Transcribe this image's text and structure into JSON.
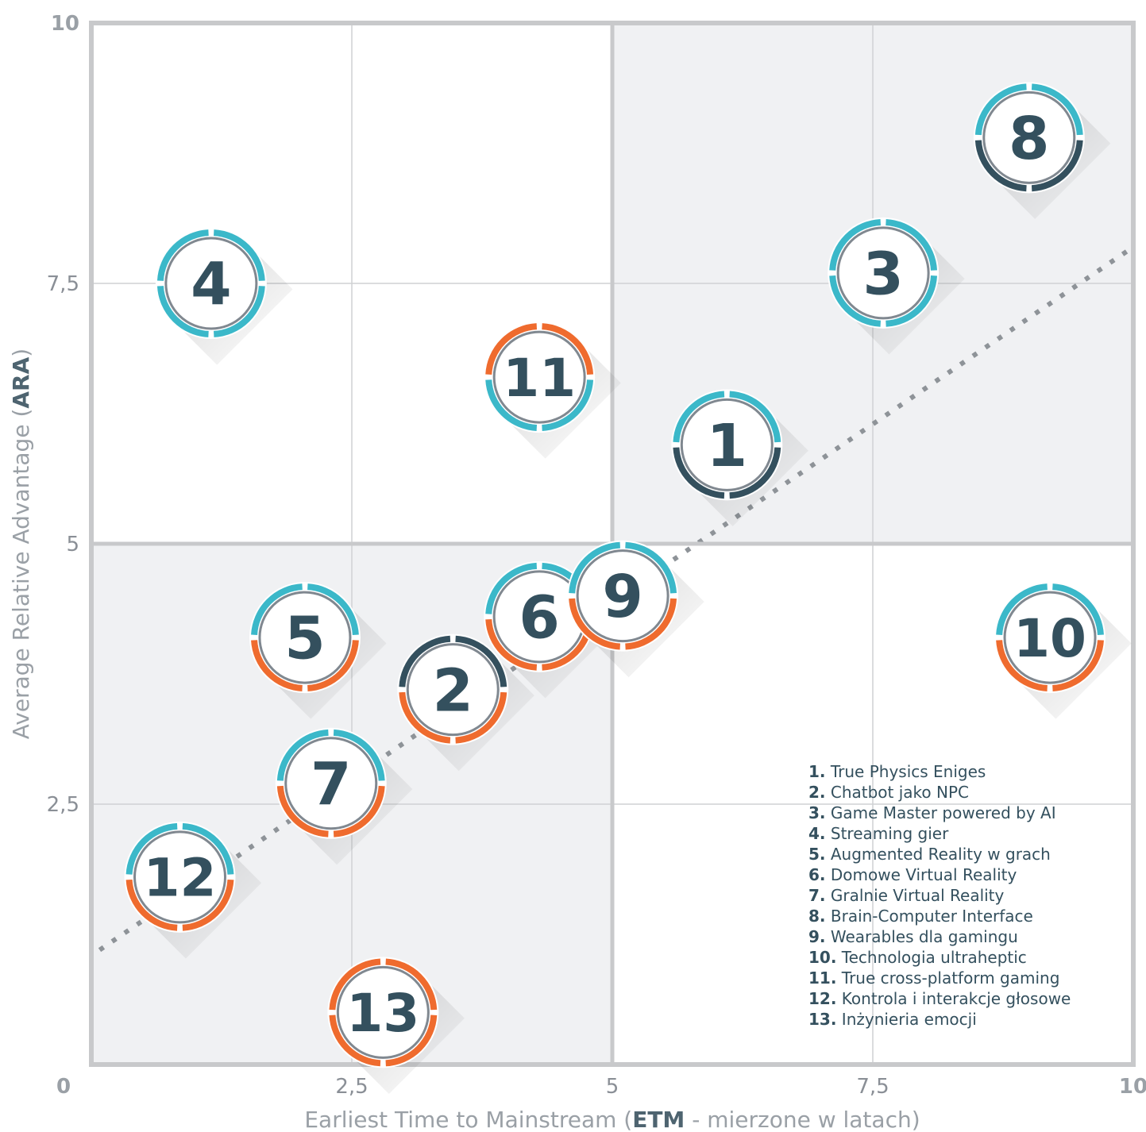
{
  "chart_data": {
    "type": "scatter",
    "xlabel_parts": [
      "Earliest Time to Mainstream (",
      "ETM",
      " - mierzone w latach)"
    ],
    "ylabel_parts": [
      "Average Relative Advantage (",
      "ARA",
      ")"
    ],
    "xlim": [
      0,
      10
    ],
    "ylim": [
      0,
      10
    ],
    "x_ticks": [
      {
        "value": 0,
        "label": "0",
        "bold": true
      },
      {
        "value": 2.5,
        "label": "2,5",
        "bold": false
      },
      {
        "value": 5,
        "label": "5",
        "bold": false
      },
      {
        "value": 7.5,
        "label": "7,5",
        "bold": false
      },
      {
        "value": 10,
        "label": "10",
        "bold": true
      }
    ],
    "y_ticks": [
      {
        "value": 2.5,
        "label": "2,5",
        "bold": false
      },
      {
        "value": 5,
        "label": "5",
        "bold": false
      },
      {
        "value": 7.5,
        "label": "7,5",
        "bold": false
      },
      {
        "value": 10,
        "label": "10",
        "bold": true
      }
    ],
    "grid": true,
    "quadrant_split": {
      "x": 5,
      "y": 5,
      "shaded": [
        "top-right",
        "bottom-left"
      ]
    },
    "trend_line": {
      "style": "dotted",
      "from": [
        0.08,
        1.1
      ],
      "to": [
        10,
        7.85
      ]
    },
    "colors": {
      "cyan": "#3bb8c9",
      "orange": "#ef6b2e",
      "dark": "#34505e",
      "gray": "#808890",
      "shade": "#f0f1f3",
      "frame": "#c8c9cb"
    },
    "points": [
      {
        "id": "1",
        "x": 6.1,
        "y": 5.95,
        "upper": "cyan",
        "lower": "dark"
      },
      {
        "id": "2",
        "x": 3.47,
        "y": 3.6,
        "upper": "dark",
        "lower": "orange"
      },
      {
        "id": "3",
        "x": 7.6,
        "y": 7.6,
        "upper": "cyan",
        "lower": "cyan"
      },
      {
        "id": "4",
        "x": 1.15,
        "y": 7.5,
        "upper": "cyan",
        "lower": "cyan"
      },
      {
        "id": "5",
        "x": 2.05,
        "y": 4.1,
        "upper": "cyan",
        "lower": "orange"
      },
      {
        "id": "6",
        "x": 4.3,
        "y": 4.3,
        "upper": "cyan",
        "lower": "orange"
      },
      {
        "id": "7",
        "x": 2.3,
        "y": 2.7,
        "upper": "cyan",
        "lower": "orange"
      },
      {
        "id": "8",
        "x": 9.0,
        "y": 8.9,
        "upper": "cyan",
        "lower": "dark"
      },
      {
        "id": "9",
        "x": 5.1,
        "y": 4.5,
        "upper": "cyan",
        "lower": "orange"
      },
      {
        "id": "10",
        "x": 9.2,
        "y": 4.1,
        "upper": "cyan",
        "lower": "orange"
      },
      {
        "id": "11",
        "x": 4.3,
        "y": 6.6,
        "upper": "orange",
        "lower": "cyan"
      },
      {
        "id": "12",
        "x": 0.85,
        "y": 1.8,
        "upper": "cyan",
        "lower": "orange"
      },
      {
        "id": "13",
        "x": 2.8,
        "y": 0.5,
        "upper": "orange",
        "lower": "orange"
      }
    ],
    "legend": [
      {
        "num": "1.",
        "text": " True Physics Eniges"
      },
      {
        "num": "2.",
        "text": " Chatbot jako NPC"
      },
      {
        "num": "3.",
        "text": " Game Master powered by AI"
      },
      {
        "num": "4.",
        "text": " Streaming gier"
      },
      {
        "num": "5.",
        "text": " Augmented Reality w grach"
      },
      {
        "num": "6.",
        "text": " Domowe Virtual Reality"
      },
      {
        "num": "7.",
        "text": " Gralnie Virtual Reality"
      },
      {
        "num": "8.",
        "text": " Brain-Computer Interface"
      },
      {
        "num": "9.",
        "text": " Wearables dla gamingu"
      },
      {
        "num": "10.",
        "text": " Technologia ultraheptic"
      },
      {
        "num": "11.",
        "text": " True cross-platform gaming"
      },
      {
        "num": "12.",
        "text": " Kontrola i interakcje głosowe"
      },
      {
        "num": "13.",
        "text": " Inżynieria emocji"
      }
    ]
  }
}
